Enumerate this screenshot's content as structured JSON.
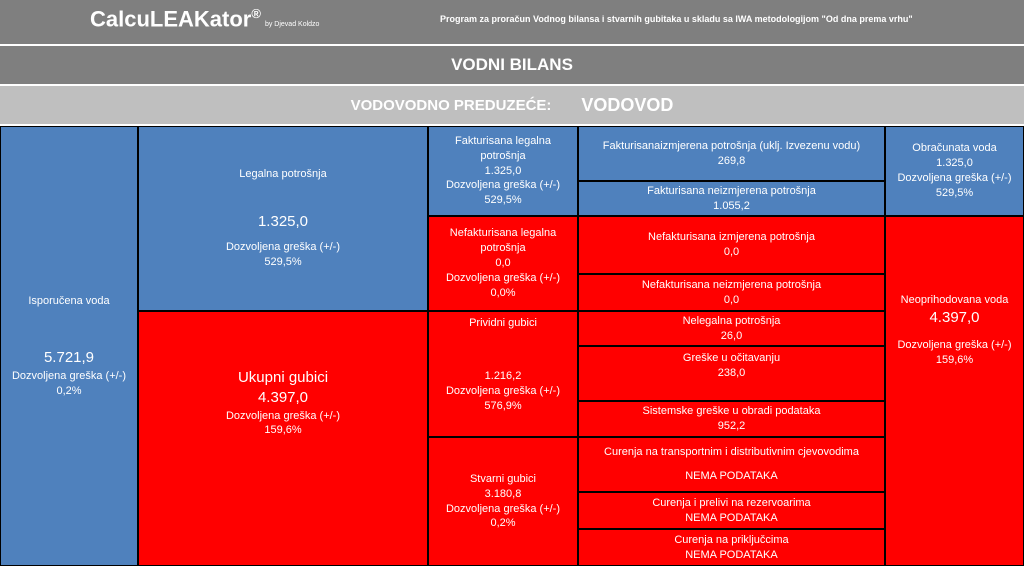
{
  "header": {
    "app_name": "CalcuLEAKator",
    "reg_mark": "®",
    "by_line": "by Djevad Koldzo",
    "tagline": "Program za proračun Vodnog bilansa i stvarnih gubitaka u skladu sa IWA metodologijom \"Od dna prema vrhu\""
  },
  "title": "VODNI BILANS",
  "utility": {
    "label": "VODOVODNO PREDUZEĆE:",
    "name": "VODOVOD"
  },
  "error_label": "Dozvoljena greška (+/-)",
  "colors": {
    "header_gray": "#7f7f7f",
    "band_light": "#bfbfbf",
    "blue": "#4f81bd",
    "red": "#ff0000"
  },
  "cells": {
    "isporucena": {
      "label": "Isporučena voda",
      "value": "5.721,9",
      "error": "0,2%"
    },
    "legalna": {
      "label": "Legalna potrošnja",
      "value": "1.325,0",
      "error": "529,5%"
    },
    "ukupni_gubici": {
      "label": "Ukupni gubici",
      "value": "4.397,0",
      "error": "159,6%"
    },
    "fakturisana_legalna": {
      "label": "Fakturisana legalna potrošnja",
      "value": "1.325,0",
      "error": "529,5%"
    },
    "nefakturisana_legalna": {
      "label": "Nefakturisana legalna potrošnja",
      "value": "0,0",
      "error": "0,0%"
    },
    "prividni_gubici": {
      "label": "Prividni gubici",
      "value": "1.216,2",
      "error": "576,9%"
    },
    "stvarni_gubici": {
      "label": "Stvarni gubici",
      "value": "3.180,8",
      "error": "0,2%"
    },
    "fakt_izmjerena": {
      "label": "Fakturisanaizmjerena potrošnja (uklj. Izvezenu vodu)",
      "value": "269,8"
    },
    "fakt_neizmjerena": {
      "label": "Fakturisana neizmjerena potrošnja",
      "value": "1.055,2"
    },
    "nefakt_izmjerena": {
      "label": "Nefakturisana izmjerena potrošnja",
      "value": "0,0"
    },
    "nefakt_neizmjerena": {
      "label": "Nefakturisana neizmjerena potrošnja",
      "value": "0,0"
    },
    "nelegalna": {
      "label": "Nelegalna potrošnja",
      "value": "26,0"
    },
    "greske_ocitavanju": {
      "label": "Greške u očitavanju",
      "value": "238,0"
    },
    "sistemske_greske": {
      "label": "Sistemske greške u obradi podataka",
      "value": "952,2"
    },
    "curenja_transport": {
      "label": "Curenja na transportnim i distributivnim cjevovodima",
      "value": "NEMA PODATAKA"
    },
    "curenja_rezervoari": {
      "label": "Curenja i prelivi na rezervoarima",
      "value": "NEMA PODATAKA"
    },
    "curenja_prikljucci": {
      "label": "Curenja na priključcima",
      "value": "NEMA PODATAKA"
    },
    "obracunata": {
      "label": "Obračunata voda",
      "value": "1.325,0",
      "error": "529,5%"
    },
    "neoprihodovana": {
      "label": "Neoprihodovana voda",
      "value": "4.397,0",
      "error": "159,6%"
    }
  }
}
